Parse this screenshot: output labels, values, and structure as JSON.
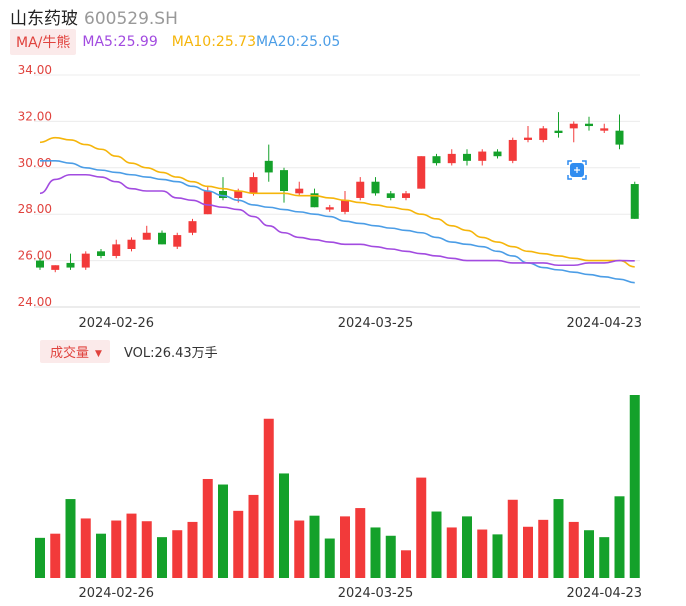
{
  "header": {
    "name": "山东药玻",
    "code": "600529.SH"
  },
  "ma_legend": {
    "button_label": "MA/牛熊",
    "ma5": "MA5:25.99",
    "ma10": "MA10:25.73",
    "ma20": "MA20:25.05"
  },
  "volume_legend": {
    "button_label": "成交量",
    "value": "VOL:26.43万手"
  },
  "colors": {
    "up": "#f23a3a",
    "down": "#14a12a",
    "ma5": "#a24be0",
    "ma10": "#f5b50b",
    "ma20": "#4b9de6",
    "axis_label": "#e0433e"
  },
  "chart_data": [
    {
      "type": "candlestick",
      "y_ticks": [
        "34.00",
        "32.00",
        "30.00",
        "28.00",
        "26.00",
        "24.00"
      ],
      "ylim": [
        24,
        34
      ],
      "x_tick_labels": [
        "2024-02-26",
        "2024-03-25",
        "2024-04-23"
      ],
      "x_tick_indices": [
        5,
        22,
        37
      ],
      "grid": true,
      "candles": [
        {
          "o": 26.0,
          "h": 26.1,
          "l": 25.6,
          "c": 25.7
        },
        {
          "o": 25.6,
          "h": 25.8,
          "l": 25.5,
          "c": 25.8
        },
        {
          "o": 25.9,
          "h": 26.3,
          "l": 25.6,
          "c": 25.7
        },
        {
          "o": 25.7,
          "h": 26.4,
          "l": 25.6,
          "c": 26.3
        },
        {
          "o": 26.4,
          "h": 26.5,
          "l": 26.1,
          "c": 26.2
        },
        {
          "o": 26.2,
          "h": 26.9,
          "l": 26.1,
          "c": 26.7
        },
        {
          "o": 26.5,
          "h": 27.0,
          "l": 26.4,
          "c": 26.9
        },
        {
          "o": 26.9,
          "h": 27.5,
          "l": 26.9,
          "c": 27.2
        },
        {
          "o": 27.2,
          "h": 27.3,
          "l": 26.7,
          "c": 26.7
        },
        {
          "o": 26.6,
          "h": 27.2,
          "l": 26.5,
          "c": 27.1
        },
        {
          "o": 27.2,
          "h": 27.8,
          "l": 27.1,
          "c": 27.7
        },
        {
          "o": 28.0,
          "h": 29.2,
          "l": 28.0,
          "c": 29.0
        },
        {
          "o": 29.0,
          "h": 29.6,
          "l": 28.6,
          "c": 28.7
        },
        {
          "o": 28.7,
          "h": 29.1,
          "l": 28.5,
          "c": 29.0
        },
        {
          "o": 28.9,
          "h": 29.8,
          "l": 28.8,
          "c": 29.6
        },
        {
          "o": 30.3,
          "h": 31.0,
          "l": 29.4,
          "c": 29.8
        },
        {
          "o": 29.9,
          "h": 30.0,
          "l": 28.5,
          "c": 29.0
        },
        {
          "o": 28.9,
          "h": 29.4,
          "l": 28.8,
          "c": 29.1
        },
        {
          "o": 28.9,
          "h": 29.1,
          "l": 28.3,
          "c": 28.3
        },
        {
          "o": 28.2,
          "h": 28.4,
          "l": 28.1,
          "c": 28.3
        },
        {
          "o": 28.1,
          "h": 29.0,
          "l": 28.0,
          "c": 28.6
        },
        {
          "o": 28.7,
          "h": 29.6,
          "l": 28.6,
          "c": 29.4
        },
        {
          "o": 29.4,
          "h": 29.6,
          "l": 28.8,
          "c": 28.9
        },
        {
          "o": 28.9,
          "h": 29.0,
          "l": 28.6,
          "c": 28.7
        },
        {
          "o": 28.7,
          "h": 29.0,
          "l": 28.6,
          "c": 28.9
        },
        {
          "o": 29.1,
          "h": 30.5,
          "l": 29.1,
          "c": 30.5
        },
        {
          "o": 30.5,
          "h": 30.6,
          "l": 30.1,
          "c": 30.2
        },
        {
          "o": 30.2,
          "h": 30.8,
          "l": 30.1,
          "c": 30.6
        },
        {
          "o": 30.6,
          "h": 30.8,
          "l": 30.1,
          "c": 30.3
        },
        {
          "o": 30.3,
          "h": 30.8,
          "l": 30.1,
          "c": 30.7
        },
        {
          "o": 30.7,
          "h": 30.8,
          "l": 30.4,
          "c": 30.5
        },
        {
          "o": 30.3,
          "h": 31.3,
          "l": 30.2,
          "c": 31.2
        },
        {
          "o": 31.2,
          "h": 31.8,
          "l": 31.1,
          "c": 31.3
        },
        {
          "o": 31.2,
          "h": 31.8,
          "l": 31.1,
          "c": 31.7
        },
        {
          "o": 31.6,
          "h": 32.4,
          "l": 31.3,
          "c": 31.5
        },
        {
          "o": 31.7,
          "h": 32.0,
          "l": 31.1,
          "c": 31.9
        },
        {
          "o": 31.9,
          "h": 32.2,
          "l": 31.6,
          "c": 31.8
        },
        {
          "o": 31.6,
          "h": 31.9,
          "l": 31.5,
          "c": 31.7
        },
        {
          "o": 31.6,
          "h": 32.3,
          "l": 30.8,
          "c": 31.0
        },
        {
          "o": 29.3,
          "h": 29.4,
          "l": 27.8,
          "c": 27.8
        }
      ],
      "ma5": [
        28.9,
        29.5,
        29.7,
        29.7,
        29.6,
        29.4,
        29.1,
        29.0,
        29.0,
        28.7,
        28.6,
        28.4,
        28.3,
        28.2,
        27.9,
        27.5,
        27.2,
        27.0,
        26.9,
        26.8,
        26.7,
        26.7,
        26.6,
        26.5,
        26.4,
        26.3,
        26.2,
        26.1,
        26.0,
        26.0,
        26.0,
        25.9,
        25.9,
        25.9,
        25.8,
        25.8,
        25.9,
        25.9,
        26.0,
        25.99
      ],
      "ma10": [
        31.1,
        31.3,
        31.2,
        31.0,
        30.8,
        30.5,
        30.2,
        30.0,
        29.8,
        29.6,
        29.4,
        29.2,
        29.1,
        29.0,
        28.9,
        28.9,
        28.9,
        28.8,
        28.8,
        28.7,
        28.6,
        28.5,
        28.4,
        28.3,
        28.2,
        28.0,
        27.8,
        27.5,
        27.3,
        27.0,
        26.8,
        26.6,
        26.4,
        26.3,
        26.2,
        26.1,
        26.0,
        26.0,
        26.0,
        25.73
      ],
      "ma20": [
        30.3,
        30.3,
        30.2,
        30.0,
        29.9,
        29.8,
        29.7,
        29.6,
        29.5,
        29.4,
        29.2,
        29.0,
        28.8,
        28.6,
        28.4,
        28.3,
        28.2,
        28.1,
        28.0,
        27.9,
        27.7,
        27.6,
        27.5,
        27.4,
        27.3,
        27.2,
        27.0,
        26.8,
        26.7,
        26.6,
        26.4,
        26.2,
        25.9,
        25.7,
        25.6,
        25.5,
        25.4,
        25.3,
        25.2,
        25.05
      ]
    },
    {
      "type": "bar",
      "title": "",
      "x_tick_labels": [
        "2024-02-26",
        "2024-03-25",
        "2024-04-23"
      ],
      "ylim": [
        0,
        26.43
      ],
      "values": [
        5.8,
        6.4,
        11.4,
        8.6,
        6.4,
        8.3,
        9.3,
        8.2,
        5.9,
        6.9,
        8.1,
        14.3,
        13.5,
        9.7,
        12.0,
        23.0,
        15.1,
        8.3,
        9.0,
        5.7,
        8.9,
        10.1,
        7.3,
        6.1,
        4.0,
        14.5,
        9.6,
        7.3,
        8.9,
        7.0,
        6.3,
        11.3,
        7.4,
        8.4,
        11.4,
        8.1,
        6.9,
        5.9,
        11.8,
        26.43
      ],
      "directions": [
        "d",
        "u",
        "d",
        "u",
        "d",
        "u",
        "u",
        "u",
        "d",
        "u",
        "u",
        "u",
        "d",
        "u",
        "u",
        "u",
        "d",
        "u",
        "d",
        "d",
        "u",
        "u",
        "d",
        "d",
        "u",
        "u",
        "d",
        "u",
        "d",
        "u",
        "d",
        "u",
        "u",
        "u",
        "d",
        "u",
        "d",
        "d",
        "d",
        "d"
      ]
    }
  ],
  "selection_marker_icon": "crosshair-target-icon"
}
